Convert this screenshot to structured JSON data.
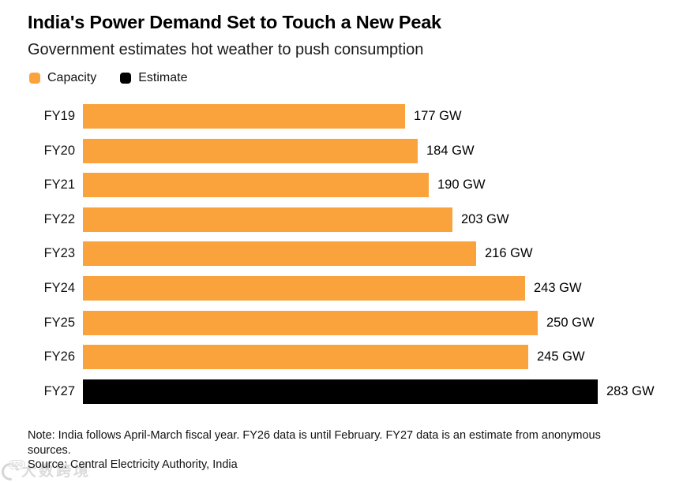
{
  "chart_data": {
    "type": "bar",
    "orientation": "horizontal",
    "title": "India's Power Demand Set to Touch a New Peak",
    "subtitle": "Government estimates hot weather to push consumption",
    "legend_position": "top-left",
    "grid": false,
    "unit": "GW",
    "xlim": [
      0,
      283
    ],
    "legend": [
      {
        "name": "Capacity",
        "color": "#FAA33C"
      },
      {
        "name": "Estimate",
        "color": "#000000"
      }
    ],
    "categories": [
      "FY19",
      "FY20",
      "FY21",
      "FY22",
      "FY23",
      "FY24",
      "FY25",
      "FY26",
      "FY27"
    ],
    "values": [
      177,
      184,
      190,
      203,
      216,
      243,
      250,
      245,
      283
    ],
    "value_labels": [
      "177 GW",
      "184 GW",
      "190 GW",
      "203 GW",
      "216 GW",
      "243 GW",
      "250 GW",
      "245 GW",
      "283 GW"
    ],
    "series_per_bar": [
      "Capacity",
      "Capacity",
      "Capacity",
      "Capacity",
      "Capacity",
      "Capacity",
      "Capacity",
      "Capacity",
      "Estimate"
    ]
  },
  "footer": {
    "note": "Note: India follows April-March fiscal year. FY26 data is until February. FY27 data is an estimate from anonymous sources.",
    "source": "Source: Central Electricity Authority, India"
  },
  "watermark": {
    "logo_text": "100",
    "text": "大数跨境"
  }
}
